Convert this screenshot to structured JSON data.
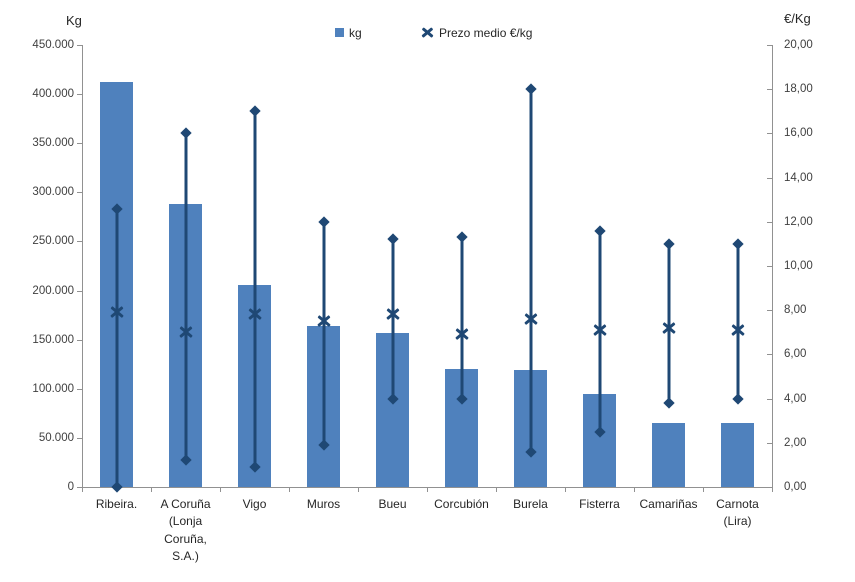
{
  "chart_data": {
    "type": "bar",
    "title": "",
    "legend_position": "top",
    "grid": false,
    "categories": [
      "Ribeira.",
      "A Coruña (Lonja Coruña, S.A.)",
      "Vigo",
      "Muros",
      "Bueu",
      "Corcubión",
      "Burela",
      "Fisterra",
      "Camariñas",
      "Carnota (Lira)"
    ],
    "series": [
      {
        "name": "kg",
        "type": "bar",
        "axis": "left",
        "values": [
          412000,
          288000,
          206000,
          164000,
          157000,
          120000,
          119000,
          95000,
          65000,
          65000
        ]
      },
      {
        "name": "Prezo medio €/kg",
        "type": "highlow-x",
        "axis": "right",
        "mean": [
          7.9,
          7.0,
          7.8,
          7.5,
          7.8,
          6.9,
          7.6,
          7.1,
          7.2,
          7.1
        ],
        "high": [
          12.6,
          16.0,
          17.0,
          12.0,
          11.2,
          11.3,
          18.0,
          11.6,
          11.0,
          11.0
        ],
        "low": [
          0.0,
          1.2,
          0.9,
          1.9,
          4.0,
          4.0,
          1.6,
          2.5,
          3.8,
          4.0
        ]
      }
    ],
    "left_axis": {
      "title": "Kg",
      "min": 0,
      "max": 450000,
      "step": 50000,
      "tick_labels": [
        "450.000",
        "400.000",
        "350.000",
        "300.000",
        "250.000",
        "200.000",
        "150.000",
        "100.000",
        "50.000",
        "0"
      ]
    },
    "right_axis": {
      "title": "€/Kg",
      "min": 0,
      "max": 20,
      "step": 2,
      "tick_labels": [
        "20,00",
        "18,00",
        "16,00",
        "14,00",
        "12,00",
        "10,00",
        "8,00",
        "6,00",
        "4,00",
        "2,00",
        "0,00"
      ]
    },
    "colors": {
      "bar": "#4F81BD",
      "line": "#1F4874",
      "axis": "#919191",
      "text": "#404040"
    }
  }
}
